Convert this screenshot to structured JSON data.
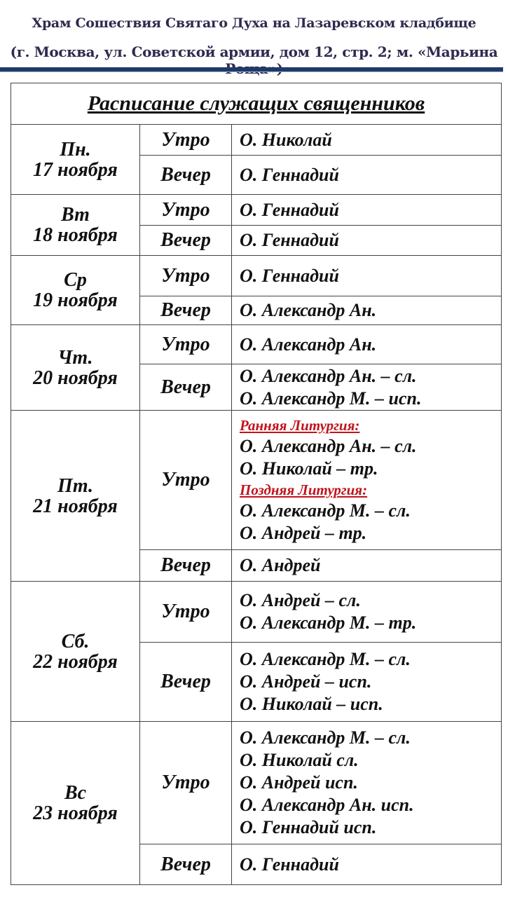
{
  "header": {
    "line1": "Храм Сошествия Святаго Духа на Лазаревском кладбище",
    "line2": "(г. Москва, ул. Советской армии, дом 12, стр. 2; м. «Марьина Роща»)",
    "accent_color": "#1f3a68"
  },
  "schedule": {
    "title": "Расписание служащих священников",
    "days": [
      {
        "day": "Пн.",
        "date": "17 ноября",
        "parts": [
          {
            "label": "Утро",
            "lines": [
              {
                "t": "О. Николай"
              }
            ]
          },
          {
            "label": "Вечер",
            "lines": [
              {
                "t": "О. Геннадий"
              }
            ]
          }
        ]
      },
      {
        "day": "Вт",
        "date": "18 ноября",
        "parts": [
          {
            "label": "Утро",
            "lines": [
              {
                "t": "О. Геннадий"
              }
            ]
          },
          {
            "label": "Вечер",
            "lines": [
              {
                "t": "О. Геннадий"
              }
            ]
          }
        ]
      },
      {
        "day": "Ср",
        "date": "19 ноября",
        "parts": [
          {
            "label": "Утро",
            "lines": [
              {
                "t": "О. Геннадий"
              }
            ]
          },
          {
            "label": "Вечер",
            "lines": [
              {
                "t": "О. Александр Ан."
              }
            ]
          }
        ]
      },
      {
        "day": "Чт.",
        "date": "20 ноября",
        "parts": [
          {
            "label": "Утро",
            "lines": [
              {
                "t": "О. Александр Ан."
              }
            ]
          },
          {
            "label": "Вечер",
            "lines": [
              {
                "t": "О. Александр Ан. – сл."
              },
              {
                "t": "О. Александр М. – исп."
              }
            ]
          }
        ]
      },
      {
        "day": "Пт.",
        "date": "21 ноября",
        "parts": [
          {
            "label": "Утро",
            "lines": [
              {
                "t": "Ранняя Литургия:",
                "sub": true
              },
              {
                "t": "О. Александр Ан. – сл."
              },
              {
                "t": "О. Николай – тр."
              },
              {
                "t": "Поздняя Литургия:",
                "sub": true
              },
              {
                "t": "О. Александр М. – сл."
              },
              {
                "t": "О. Андрей – тр."
              }
            ]
          },
          {
            "label": "Вечер",
            "lines": [
              {
                "t": "О. Андрей"
              }
            ]
          }
        ]
      },
      {
        "day": "Сб.",
        "date": "22 ноября",
        "parts": [
          {
            "label": "Утро",
            "lines": [
              {
                "t": "О. Андрей – сл."
              },
              {
                "t": "О. Александр М. – тр."
              }
            ]
          },
          {
            "label": "Вечер",
            "lines": [
              {
                "t": "О. Александр М. – сл."
              },
              {
                "t": "О. Андрей – исп."
              },
              {
                "t": "О. Николай – исп."
              }
            ]
          }
        ]
      },
      {
        "day": "Вс",
        "date": "23 ноября",
        "parts": [
          {
            "label": "Утро",
            "lines": [
              {
                "t": "О. Александр М. – сл."
              },
              {
                "t": "О. Николай сл."
              },
              {
                "t": "О. Андрей исп."
              },
              {
                "t": "О. Александр Ан. исп."
              },
              {
                "t": "О. Геннадий исп."
              }
            ]
          },
          {
            "label": "Вечер",
            "lines": [
              {
                "t": "О. Геннадий"
              }
            ]
          }
        ]
      }
    ]
  }
}
